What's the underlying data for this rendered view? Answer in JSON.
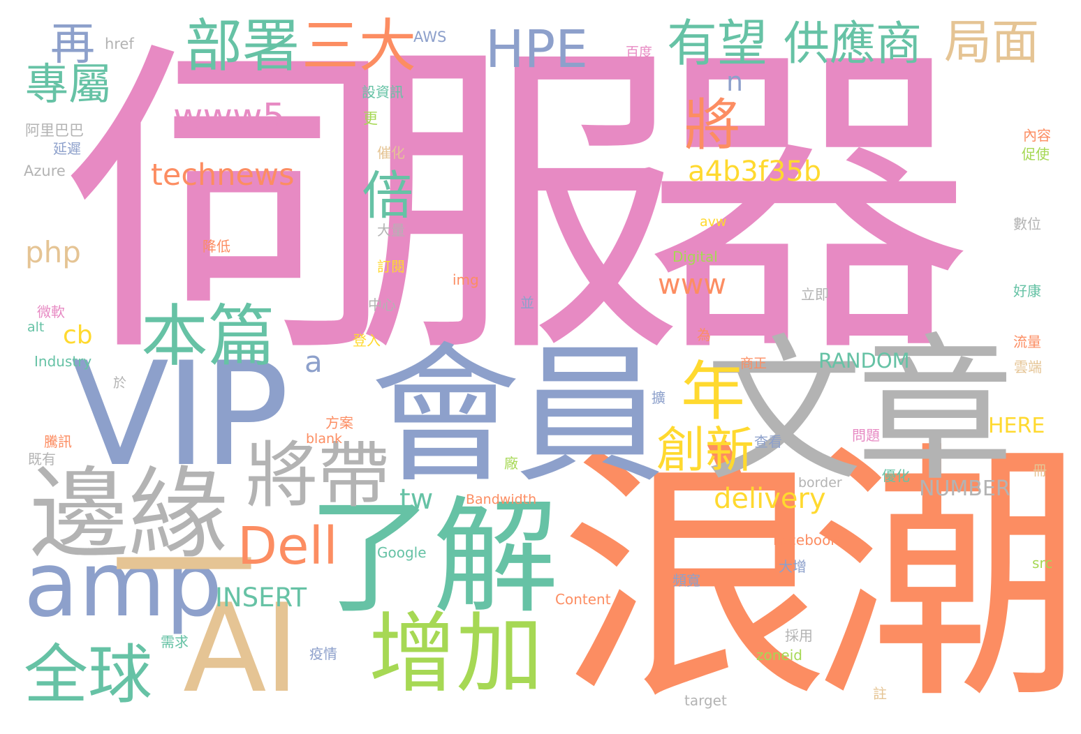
{
  "palette": {
    "pink": "#e78ac3",
    "blue": "#8da0cb",
    "green": "#66c2a5",
    "orange": "#fc8d62",
    "gray": "#b3b3b3",
    "tan": "#e5c494",
    "yellow": "#ffd92f",
    "lime": "#a6d854"
  },
  "words": [
    {
      "text": "伺服器",
      "color": "pink"
    },
    {
      "text": "浪潮",
      "color": "orange"
    },
    {
      "text": "會員",
      "color": "blue"
    },
    {
      "text": "文章",
      "color": "gray"
    },
    {
      "text": "VIP",
      "color": "blue"
    },
    {
      "text": "了解",
      "color": "green"
    },
    {
      "text": "AI",
      "color": "tan"
    },
    {
      "text": "邊緣",
      "color": "gray"
    },
    {
      "text": "增加",
      "color": "lime"
    },
    {
      "text": "將帶",
      "color": "gray"
    },
    {
      "text": "amp",
      "color": "blue"
    },
    {
      "text": "一",
      "color": "tan"
    },
    {
      "text": "本篇",
      "color": "green"
    },
    {
      "text": "全球",
      "color": "green"
    },
    {
      "text": "Dell",
      "color": "orange"
    },
    {
      "text": "年",
      "color": "yellow"
    },
    {
      "text": "創新",
      "color": "yellow"
    },
    {
      "text": "部署",
      "color": "green"
    },
    {
      "text": "三大",
      "color": "orange"
    },
    {
      "text": "HPE",
      "color": "blue"
    },
    {
      "text": "有望",
      "color": "green"
    },
    {
      "text": "供應商",
      "color": "green"
    },
    {
      "text": "局面",
      "color": "tan"
    },
    {
      "text": "再",
      "color": "blue"
    },
    {
      "text": "專屬",
      "color": "green"
    },
    {
      "text": "www5",
      "color": "pink"
    },
    {
      "text": "將",
      "color": "orange"
    },
    {
      "text": "倍",
      "color": "green"
    },
    {
      "text": "technews",
      "color": "orange"
    },
    {
      "text": "a4b3f35b",
      "color": "yellow"
    },
    {
      "text": "php",
      "color": "tan"
    },
    {
      "text": "www",
      "color": "orange"
    },
    {
      "text": "cb",
      "color": "yellow"
    },
    {
      "text": "a",
      "color": "blue"
    },
    {
      "text": "n",
      "color": "blue"
    },
    {
      "text": "tw",
      "color": "green"
    },
    {
      "text": "delivery",
      "color": "yellow"
    },
    {
      "text": "INSERT",
      "color": "green"
    },
    {
      "text": "RANDOM",
      "color": "green"
    },
    {
      "text": "HERE",
      "color": "yellow"
    },
    {
      "text": "NUMBER",
      "color": "gray"
    },
    {
      "text": "href",
      "color": "gray"
    },
    {
      "text": "AWS",
      "color": "blue"
    },
    {
      "text": "百度",
      "color": "pink"
    },
    {
      "text": "設資訊",
      "color": "green"
    },
    {
      "text": "更",
      "color": "lime"
    },
    {
      "text": "阿里巴巴",
      "color": "gray"
    },
    {
      "text": "延遲",
      "color": "blue"
    },
    {
      "text": "Azure",
      "color": "gray"
    },
    {
      "text": "催化",
      "color": "tan"
    },
    {
      "text": "內容",
      "color": "orange"
    },
    {
      "text": "促使",
      "color": "lime"
    },
    {
      "text": "大量",
      "color": "gray"
    },
    {
      "text": "降低",
      "color": "orange"
    },
    {
      "text": "avw",
      "color": "yellow"
    },
    {
      "text": "數位",
      "color": "gray"
    },
    {
      "text": "ck",
      "color": "pink"
    },
    {
      "text": "Digital",
      "color": "lime"
    },
    {
      "text": "訂閱",
      "color": "yellow"
    },
    {
      "text": "img",
      "color": "orange"
    },
    {
      "text": "立即",
      "color": "gray"
    },
    {
      "text": "好康",
      "color": "green"
    },
    {
      "text": "中心",
      "color": "gray"
    },
    {
      "text": "並",
      "color": "blue"
    },
    {
      "text": "微軟",
      "color": "pink"
    },
    {
      "text": "alt",
      "color": "green"
    },
    {
      "text": "為",
      "color": "orange"
    },
    {
      "text": "登入",
      "color": "yellow"
    },
    {
      "text": "流量",
      "color": "orange"
    },
    {
      "text": "Industry",
      "color": "green"
    },
    {
      "text": "商正",
      "color": "orange"
    },
    {
      "text": "雲端",
      "color": "tan"
    },
    {
      "text": "於",
      "color": "gray"
    },
    {
      "text": "擴",
      "color": "blue"
    },
    {
      "text": "方案",
      "color": "orange"
    },
    {
      "text": "騰訊",
      "color": "orange"
    },
    {
      "text": "blank",
      "color": "orange"
    },
    {
      "text": "查看",
      "color": "blue"
    },
    {
      "text": "問題",
      "color": "pink"
    },
    {
      "text": "既有",
      "color": "gray"
    },
    {
      "text": "廠",
      "color": "lime"
    },
    {
      "text": "冊",
      "color": "tan"
    },
    {
      "text": "border",
      "color": "gray"
    },
    {
      "text": "優化",
      "color": "green"
    },
    {
      "text": "Bandwidth",
      "color": "orange"
    },
    {
      "text": "Facebook",
      "color": "orange"
    },
    {
      "text": "Google",
      "color": "green"
    },
    {
      "text": "大增",
      "color": "blue"
    },
    {
      "text": "src",
      "color": "lime"
    },
    {
      "text": "頻寬",
      "color": "blue"
    },
    {
      "text": "Content",
      "color": "orange"
    },
    {
      "text": "需求",
      "color": "green"
    },
    {
      "text": "疫情",
      "color": "blue"
    },
    {
      "text": "採用",
      "color": "gray"
    },
    {
      "text": "zoneid",
      "color": "lime"
    },
    {
      "text": "註",
      "color": "tan"
    },
    {
      "text": "target",
      "color": "gray"
    }
  ]
}
